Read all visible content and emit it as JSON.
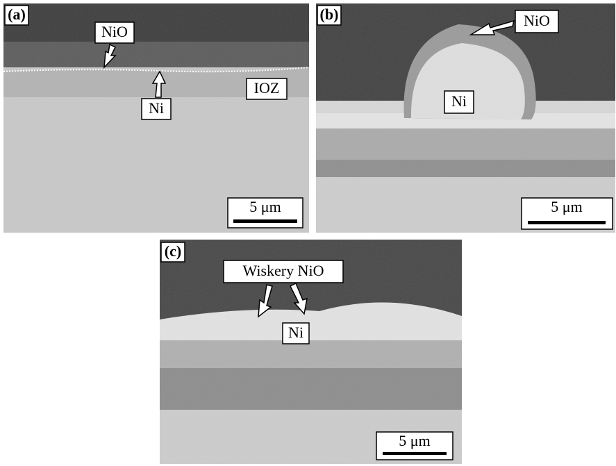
{
  "panels": [
    {
      "label": "(a)",
      "annotations": [
        "NiO",
        "Ni",
        "IOZ"
      ],
      "scale_bar": "5 μm"
    },
    {
      "label": "(b)",
      "annotations": [
        "NiO",
        "Ni"
      ],
      "scale_bar": "5 μm"
    },
    {
      "label": "(c)",
      "annotations": [
        "Wiskery NiO",
        "Ni"
      ],
      "scale_bar": "5 μm"
    }
  ]
}
